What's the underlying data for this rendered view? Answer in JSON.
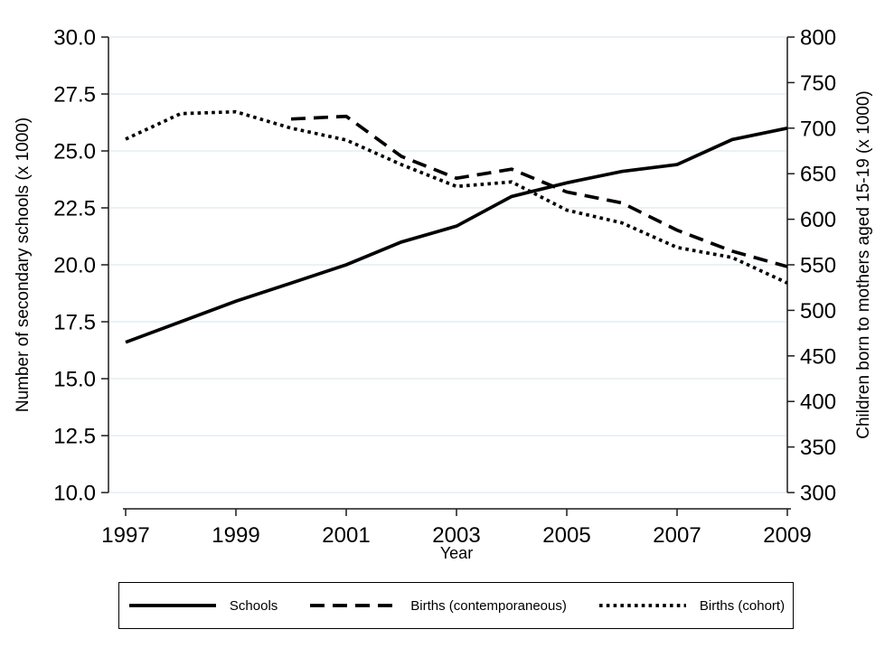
{
  "chart_data": {
    "type": "line",
    "title": "",
    "xlabel": "Year",
    "ylabel_left": "Number of secondary schools (x 1000)",
    "ylabel_right": "Children born to mothers aged 15-19 (x 1000)",
    "grid": true,
    "x_axis": {
      "min": 1997,
      "max": 2009,
      "tick_values": [
        1997,
        1999,
        2001,
        2003,
        2005,
        2007,
        2009
      ],
      "tick_labels": [
        "1997",
        "1999",
        "2001",
        "2003",
        "2005",
        "2007",
        "2009"
      ]
    },
    "y_left_axis": {
      "min": 10,
      "max": 30,
      "tick_values": [
        30,
        27.5,
        25,
        22.5,
        20,
        17.5,
        15,
        12.5,
        10
      ],
      "tick_labels": [
        "30.0",
        "27.5",
        "25.0",
        "22.5",
        "20.0",
        "17.5",
        "15.0",
        "12.5",
        "10.0"
      ]
    },
    "y_right_axis": {
      "min": 300,
      "max": 800,
      "tick_values": [
        800,
        750,
        700,
        650,
        600,
        550,
        500,
        450,
        400,
        350,
        300
      ],
      "tick_labels": [
        "800",
        "750",
        "700",
        "650",
        "600",
        "550",
        "500",
        "450",
        "400",
        "350",
        "300"
      ]
    },
    "series": [
      {
        "name": "Schools",
        "axis": "left",
        "line_style": "solid",
        "x": [
          1997,
          1998,
          1999,
          2000,
          2001,
          2002,
          2003,
          2004,
          2005,
          2006,
          2007,
          2008,
          2009
        ],
        "values": [
          16.6,
          17.5,
          18.4,
          19.2,
          20.0,
          21.0,
          21.7,
          23.0,
          23.6,
          24.1,
          24.4,
          25.5,
          26.0
        ]
      },
      {
        "name": "Births (contemporaneous)",
        "axis": "right",
        "line_style": "dashed",
        "x": [
          2000,
          2001,
          2002,
          2003,
          2004,
          2005,
          2006,
          2007,
          2008,
          2009
        ],
        "values": [
          710,
          713,
          669,
          645,
          655,
          630,
          618,
          588,
          565,
          548
        ]
      },
      {
        "name": "Births (cohort)",
        "axis": "right",
        "line_style": "dotted",
        "x": [
          1997,
          1998,
          1999,
          2000,
          2001,
          2002,
          2003,
          2004,
          2005,
          2006,
          2007,
          2008,
          2009
        ],
        "values": [
          688,
          716,
          718,
          700,
          687,
          660,
          636,
          641,
          610,
          596,
          569,
          558,
          530
        ]
      }
    ],
    "legend": {
      "position": "bottom",
      "entries": [
        "Schools",
        "Births (contemporaneous)",
        "Births (cohort)"
      ]
    },
    "colors": {
      "line": "#000000",
      "grid": "#e4eef2",
      "background": "#ffffff"
    }
  }
}
